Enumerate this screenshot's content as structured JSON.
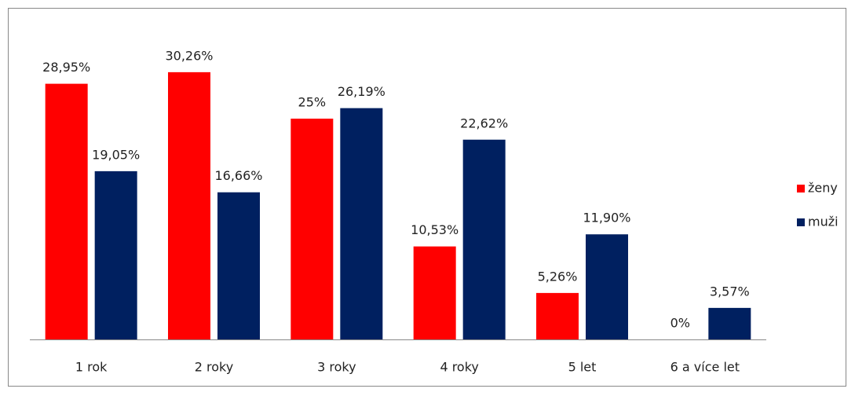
{
  "chart_data": {
    "type": "bar",
    "categories": [
      "1 rok",
      "2 roky",
      "3 roky",
      "4 roky",
      "5 let",
      "6 a více let"
    ],
    "series": [
      {
        "name": "ženy",
        "color": "#ff0000",
        "values": [
          28.95,
          30.26,
          25,
          10.53,
          5.26,
          0
        ],
        "value_labels": [
          "28,95%",
          "30,26%",
          "25%",
          "10,53%",
          "5,26%",
          "0%"
        ]
      },
      {
        "name": "muži",
        "color": "#002060",
        "values": [
          19.05,
          16.66,
          26.19,
          22.62,
          11.9,
          3.57
        ],
        "value_labels": [
          "19,05%",
          "16,66%",
          "26,19%",
          "22,62%",
          "11,90%",
          "3,57%"
        ]
      }
    ],
    "legend": "right"
  }
}
